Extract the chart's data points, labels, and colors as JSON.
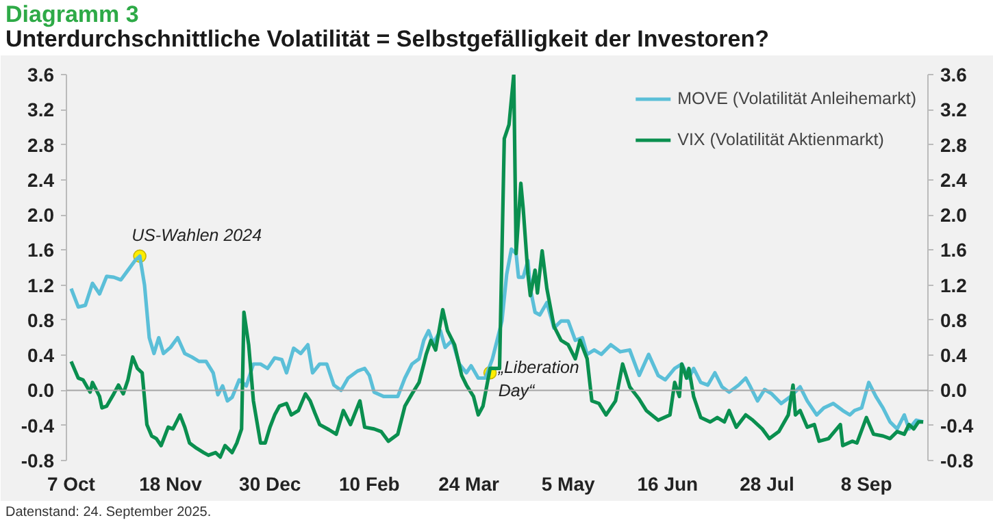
{
  "chart_data": {
    "type": "line",
    "title": "Diagramm 3",
    "subtitle": "Unterdurchschnittliche Volatilität = Selbstgefälligkeit der Investoren?",
    "xlim": [
      "2024-10-05",
      "2025-10-04"
    ],
    "xticks": [
      {
        "value": "2024-10-07",
        "label": "7 Oct"
      },
      {
        "value": "2024-11-18",
        "label": "18 Nov"
      },
      {
        "value": "2024-12-30",
        "label": "30 Dec"
      },
      {
        "value": "2025-02-10",
        "label": "10 Feb"
      },
      {
        "value": "2025-03-24",
        "label": "24 Mar"
      },
      {
        "value": "2025-05-05",
        "label": "5 May"
      },
      {
        "value": "2025-06-16",
        "label": "16 Jun"
      },
      {
        "value": "2025-07-28",
        "label": "28 Jul"
      },
      {
        "value": "2025-09-08",
        "label": "8 Sep"
      }
    ],
    "ylim": [
      -0.8,
      3.6
    ],
    "yticks": [
      -0.8,
      -0.4,
      {
        "value": 0,
        "label": "0.0"
      },
      0.4,
      0.8,
      1.2,
      1.6,
      {
        "value": 2,
        "label": "2.0"
      },
      2.4,
      2.8,
      3.2,
      3.6
    ],
    "y2lim": [
      -0.8,
      3.6
    ],
    "y2ticks": [
      -0.8,
      -0.4,
      {
        "value": 0,
        "label": "0.0"
      },
      0.4,
      0.8,
      1.2,
      1.6,
      {
        "value": 2,
        "label": "2.0"
      },
      2.4,
      2.8,
      3.2,
      3.6
    ],
    "grid": false,
    "legend": "top right",
    "ref_lines": [
      {
        "axis": "y",
        "value": 0,
        "color": "#a6a6a6"
      }
    ],
    "annotations": [
      {
        "text": "US-Wahlen 2024",
        "x": "2024-11-05",
        "y": 1.53
      },
      {
        "text": "„Liberation Day“",
        "x": "2025-04-02",
        "y": 0.2
      },
      "Datenstand: 24. September 2025."
    ],
    "series": [
      {
        "name": "MOVE (Volatilität Anleihemarkt)",
        "color": "#5bbfd8",
        "x": [
          "2024-10-07",
          "2024-10-10",
          "2024-10-13",
          "2024-10-16",
          "2024-10-19",
          "2024-10-22",
          "2024-10-25",
          "2024-10-28",
          "2024-10-31",
          "2024-11-03",
          "2024-11-05",
          "2024-11-07",
          "2024-11-09",
          "2024-11-11",
          "2024-11-13",
          "2024-11-15",
          "2024-11-18",
          "2024-11-21",
          "2024-11-24",
          "2024-11-27",
          "2024-11-30",
          "2024-12-03",
          "2024-12-06",
          "2024-12-08",
          "2024-12-10",
          "2024-12-12",
          "2024-12-14",
          "2024-12-17",
          "2024-12-20",
          "2024-12-23",
          "2024-12-26",
          "2024-12-29",
          "2025-01-01",
          "2025-01-04",
          "2025-01-06",
          "2025-01-09",
          "2025-01-12",
          "2025-01-15",
          "2025-01-17",
          "2025-01-20",
          "2025-01-23",
          "2025-01-26",
          "2025-01-29",
          "2025-02-01",
          "2025-02-05",
          "2025-02-08",
          "2025-02-10",
          "2025-02-12",
          "2025-02-16",
          "2025-02-22",
          "2025-02-25",
          "2025-02-28",
          "2025-03-03",
          "2025-03-05",
          "2025-03-07",
          "2025-03-09",
          "2025-03-12",
          "2025-03-14",
          "2025-03-17",
          "2025-03-20",
          "2025-03-23",
          "2025-03-25",
          "2025-03-28",
          "2025-03-31",
          "2025-04-03",
          "2025-04-07",
          "2025-04-09",
          "2025-04-11",
          "2025-04-13",
          "2025-04-14",
          "2025-04-16",
          "2025-04-18",
          "2025-04-19",
          "2025-04-21",
          "2025-04-23",
          "2025-04-26",
          "2025-04-29",
          "2025-05-02",
          "2025-05-05",
          "2025-05-08",
          "2025-05-11",
          "2025-05-13",
          "2025-05-16",
          "2025-05-19",
          "2025-05-23",
          "2025-05-27",
          "2025-05-31",
          "2025-06-04",
          "2025-06-08",
          "2025-06-12",
          "2025-06-15",
          "2025-06-19",
          "2025-06-22",
          "2025-06-25",
          "2025-06-27",
          "2025-06-30",
          "2025-07-03",
          "2025-07-06",
          "2025-07-09",
          "2025-07-12",
          "2025-07-16",
          "2025-07-19",
          "2025-07-21",
          "2025-07-24",
          "2025-07-27",
          "2025-07-30",
          "2025-08-03",
          "2025-08-07",
          "2025-08-11",
          "2025-08-14",
          "2025-08-18",
          "2025-08-21",
          "2025-08-25",
          "2025-08-29",
          "2025-09-01",
          "2025-09-03",
          "2025-09-06",
          "2025-09-09",
          "2025-09-12",
          "2025-09-15",
          "2025-09-18",
          "2025-09-21",
          "2025-09-24",
          "2025-09-26",
          "2025-09-29",
          "2025-10-02"
        ],
        "values": [
          1.16,
          0.95,
          0.97,
          1.22,
          1.1,
          1.3,
          1.29,
          1.26,
          1.37,
          1.48,
          1.53,
          1.2,
          0.6,
          0.42,
          0.6,
          0.42,
          0.49,
          0.6,
          0.42,
          0.38,
          0.33,
          0.33,
          0.2,
          -0.05,
          0.05,
          -0.12,
          -0.08,
          0.12,
          0.05,
          0.3,
          0.3,
          0.25,
          0.37,
          0.35,
          0.2,
          0.48,
          0.42,
          0.52,
          0.2,
          0.3,
          0.3,
          0.06,
          0.0,
          0.14,
          0.22,
          0.25,
          0.17,
          -0.02,
          -0.07,
          -0.07,
          0.14,
          0.3,
          0.36,
          0.57,
          0.68,
          0.54,
          0.68,
          0.49,
          0.57,
          0.3,
          0.2,
          0.28,
          0.14,
          0.14,
          0.36,
          0.79,
          1.32,
          1.61,
          1.56,
          1.29,
          1.29,
          1.48,
          1.16,
          0.89,
          0.86,
          1.0,
          0.71,
          0.79,
          0.79,
          0.57,
          0.6,
          0.41,
          0.46,
          0.41,
          0.52,
          0.44,
          0.46,
          0.17,
          0.41,
          0.17,
          0.12,
          0.25,
          0.3,
          0.14,
          0.25,
          0.09,
          0.06,
          0.2,
          0.04,
          -0.02,
          0.06,
          0.14,
          0.04,
          -0.12,
          0.01,
          -0.04,
          -0.15,
          -0.07,
          0.04,
          -0.12,
          -0.28,
          -0.2,
          -0.15,
          -0.23,
          -0.28,
          -0.23,
          -0.2,
          0.09,
          -0.07,
          -0.2,
          -0.36,
          -0.44,
          -0.28,
          -0.44,
          -0.34,
          -0.36
        ]
      },
      {
        "name": "VIX (Volatilität Aktienmarkt)",
        "color": "#0a8f4f",
        "x": [
          "2024-10-07",
          "2024-10-10",
          "2024-10-12",
          "2024-10-15",
          "2024-10-16",
          "2024-10-19",
          "2024-10-20",
          "2024-10-22",
          "2024-10-25",
          "2024-10-27",
          "2024-10-29",
          "2024-10-31",
          "2024-11-02",
          "2024-11-04",
          "2024-11-06",
          "2024-11-08",
          "2024-11-10",
          "2024-11-12",
          "2024-11-14",
          "2024-11-17",
          "2024-11-19",
          "2024-11-22",
          "2024-11-24",
          "2024-11-26",
          "2024-11-29",
          "2024-12-02",
          "2024-12-04",
          "2024-12-07",
          "2024-12-09",
          "2024-12-11",
          "2024-12-14",
          "2024-12-16",
          "2024-12-18",
          "2024-12-19",
          "2024-12-21",
          "2024-12-23",
          "2024-12-26",
          "2024-12-28",
          "2024-12-30",
          "2025-01-01",
          "2025-01-03",
          "2025-01-06",
          "2025-01-08",
          "2025-01-11",
          "2025-01-14",
          "2025-01-16",
          "2025-01-18",
          "2025-01-20",
          "2025-01-24",
          "2025-01-27",
          "2025-01-30",
          "2025-02-02",
          "2025-02-06",
          "2025-02-08",
          "2025-02-12",
          "2025-02-15",
          "2025-02-18",
          "2025-02-22",
          "2025-02-25",
          "2025-02-28",
          "2025-03-03",
          "2025-03-05",
          "2025-03-06",
          "2025-03-08",
          "2025-03-10",
          "2025-03-13",
          "2025-03-15",
          "2025-03-18",
          "2025-03-21",
          "2025-03-23",
          "2025-03-26",
          "2025-03-28",
          "2025-03-30",
          "2025-04-02",
          "2025-04-06",
          "2025-04-08",
          "2025-04-10",
          "2025-04-12",
          "2025-04-13",
          "2025-04-15",
          "2025-04-16",
          "2025-04-18",
          "2025-04-19",
          "2025-04-21",
          "2025-04-22",
          "2025-04-24",
          "2025-04-26",
          "2025-04-29",
          "2025-05-02",
          "2025-05-05",
          "2025-05-08",
          "2025-05-10",
          "2025-05-13",
          "2025-05-15",
          "2025-05-18",
          "2025-05-21",
          "2025-05-25",
          "2025-05-28",
          "2025-05-31",
          "2025-06-04",
          "2025-06-07",
          "2025-06-12",
          "2025-06-17",
          "2025-06-19",
          "2025-06-21",
          "2025-06-22",
          "2025-06-24",
          "2025-06-25",
          "2025-06-27",
          "2025-06-30",
          "2025-07-04",
          "2025-07-07",
          "2025-07-10",
          "2025-07-12",
          "2025-07-15",
          "2025-07-19",
          "2025-07-22",
          "2025-07-26",
          "2025-07-29",
          "2025-08-02",
          "2025-08-06",
          "2025-08-08",
          "2025-08-09",
          "2025-08-11",
          "2025-08-14",
          "2025-08-17",
          "2025-08-19",
          "2025-08-23",
          "2025-08-28",
          "2025-08-29",
          "2025-09-02",
          "2025-09-04",
          "2025-09-08",
          "2025-09-11",
          "2025-09-15",
          "2025-09-18",
          "2025-09-21",
          "2025-09-24",
          "2025-09-26",
          "2025-09-28",
          "2025-09-30",
          "2025-10-02"
        ],
        "values": [
          0.33,
          0.14,
          0.12,
          -0.02,
          0.09,
          -0.07,
          -0.2,
          -0.18,
          -0.04,
          0.06,
          -0.04,
          0.12,
          0.38,
          0.25,
          0.2,
          -0.39,
          -0.52,
          -0.55,
          -0.63,
          -0.42,
          -0.44,
          -0.28,
          -0.42,
          -0.6,
          -0.66,
          -0.71,
          -0.74,
          -0.71,
          -0.76,
          -0.63,
          -0.71,
          -0.6,
          -0.44,
          0.89,
          0.52,
          -0.12,
          -0.6,
          -0.6,
          -0.42,
          -0.28,
          -0.18,
          -0.15,
          -0.28,
          -0.23,
          -0.04,
          -0.12,
          -0.26,
          -0.39,
          -0.45,
          -0.5,
          -0.23,
          -0.39,
          -0.12,
          -0.42,
          -0.44,
          -0.47,
          -0.58,
          -0.5,
          -0.18,
          -0.04,
          0.09,
          0.3,
          0.41,
          0.57,
          0.46,
          0.92,
          0.68,
          0.52,
          0.17,
          0.06,
          -0.07,
          -0.28,
          -0.18,
          0.25,
          0.25,
          2.87,
          3.03,
          3.6,
          1.56,
          2.36,
          2.07,
          1.32,
          1.08,
          1.37,
          1.11,
          1.59,
          1.16,
          0.73,
          0.57,
          0.52,
          0.36,
          0.57,
          0.36,
          -0.12,
          -0.15,
          -0.28,
          -0.12,
          0.3,
          0.04,
          -0.1,
          -0.23,
          -0.34,
          -0.28,
          0.09,
          -0.07,
          0.3,
          0.14,
          0.25,
          -0.07,
          -0.31,
          -0.36,
          -0.31,
          -0.36,
          -0.23,
          -0.42,
          -0.28,
          -0.34,
          -0.44,
          -0.55,
          -0.47,
          -0.28,
          0.06,
          -0.28,
          -0.23,
          -0.42,
          -0.39,
          -0.58,
          -0.55,
          -0.39,
          -0.63,
          -0.58,
          -0.6,
          -0.31,
          -0.5,
          -0.52,
          -0.55,
          -0.47,
          -0.5,
          -0.39,
          -0.44,
          -0.36,
          -0.36
        ]
      }
    ]
  }
}
